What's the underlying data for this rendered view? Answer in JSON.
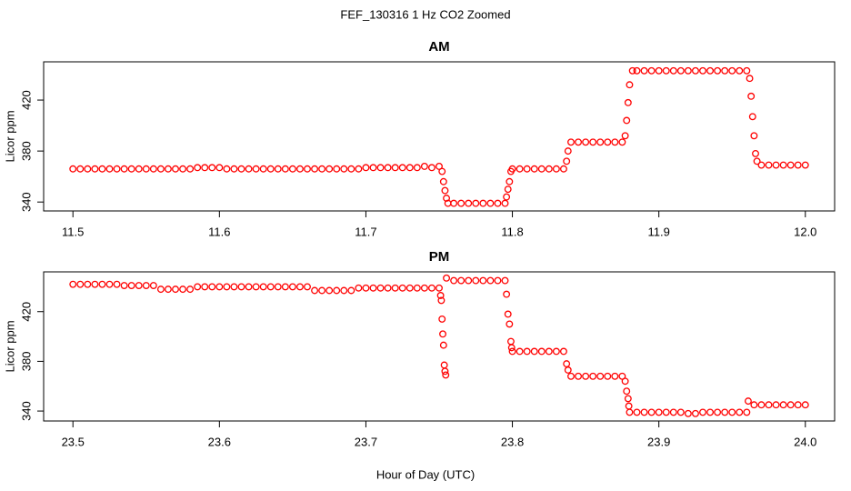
{
  "title": "FEF_130316  1 Hz CO2 Zoomed",
  "x_label": "Hour of Day (UTC)",
  "chart_data": [
    {
      "type": "scatter",
      "title": "AM",
      "y_label": "Licor ppm",
      "color": "#ff0000",
      "xlim": [
        11.48,
        12.02
      ],
      "xticks": [
        11.5,
        11.6,
        11.7,
        11.8,
        11.9,
        {
          "value": 12,
          "label": "12.0"
        }
      ],
      "ylim": [
        333,
        450
      ],
      "yticks": [
        340,
        380,
        420
      ],
      "x": [
        11.5,
        11.505,
        11.51,
        11.515,
        11.52,
        11.525,
        11.53,
        11.535,
        11.54,
        11.545,
        11.55,
        11.555,
        11.56,
        11.565,
        11.57,
        11.575,
        11.58,
        11.585,
        11.59,
        11.595,
        11.6,
        11.605,
        11.61,
        11.615,
        11.62,
        11.625,
        11.63,
        11.635,
        11.64,
        11.645,
        11.65,
        11.655,
        11.66,
        11.665,
        11.67,
        11.675,
        11.68,
        11.685,
        11.69,
        11.695,
        11.7,
        11.705,
        11.71,
        11.715,
        11.72,
        11.725,
        11.73,
        11.735,
        11.74,
        11.745,
        11.75,
        11.752,
        11.753,
        11.754,
        11.755,
        11.756,
        11.76,
        11.765,
        11.77,
        11.775,
        11.78,
        11.785,
        11.79,
        11.795,
        11.796,
        11.797,
        11.798,
        11.799,
        11.8,
        11.805,
        11.81,
        11.815,
        11.82,
        11.825,
        11.83,
        11.835,
        11.837,
        11.838,
        11.84,
        11.845,
        11.85,
        11.855,
        11.86,
        11.865,
        11.87,
        11.875,
        11.877,
        11.878,
        11.879,
        11.88,
        11.882,
        11.885,
        11.89,
        11.895,
        11.9,
        11.905,
        11.91,
        11.915,
        11.92,
        11.925,
        11.93,
        11.935,
        11.94,
        11.945,
        11.95,
        11.955,
        11.96,
        11.962,
        11.963,
        11.964,
        11.965,
        11.966,
        11.967,
        11.97,
        11.975,
        11.98,
        11.985,
        11.99,
        11.995,
        12.0
      ],
      "values": [
        366,
        366,
        366,
        366,
        366,
        366,
        366,
        366,
        366,
        366,
        366,
        366,
        366,
        366,
        366,
        366,
        366,
        367,
        367,
        367,
        367,
        366,
        366,
        366,
        366,
        366,
        366,
        366,
        366,
        366,
        366,
        366,
        366,
        366,
        366,
        366,
        366,
        366,
        366,
        366,
        367,
        367,
        367,
        367,
        367,
        367,
        367,
        367,
        368,
        367,
        368,
        364,
        356,
        349,
        343,
        339,
        339,
        339,
        339,
        339,
        339,
        339,
        339,
        339,
        344,
        350,
        356,
        364,
        366,
        366,
        366,
        366,
        366,
        366,
        366,
        366,
        372,
        380,
        387,
        387,
        387,
        387,
        387,
        387,
        387,
        387,
        392,
        404,
        418,
        432,
        443,
        443,
        443,
        443,
        443,
        443,
        443,
        443,
        443,
        443,
        443,
        443,
        443,
        443,
        443,
        443,
        443,
        437,
        423,
        407,
        392,
        378,
        372,
        369,
        369,
        369,
        369,
        369,
        369,
        369
      ]
    },
    {
      "type": "scatter",
      "title": "PM",
      "y_label": "Licor ppm",
      "color": "#ff0000",
      "xlim": [
        23.48,
        24.02
      ],
      "xticks": [
        23.5,
        23.6,
        23.7,
        23.8,
        23.9,
        {
          "value": 24,
          "label": "24.0"
        }
      ],
      "ylim": [
        332,
        452
      ],
      "yticks": [
        340,
        380,
        420
      ],
      "x": [
        23.5,
        23.505,
        23.51,
        23.515,
        23.52,
        23.525,
        23.53,
        23.535,
        23.54,
        23.545,
        23.55,
        23.555,
        23.56,
        23.565,
        23.57,
        23.575,
        23.58,
        23.585,
        23.59,
        23.595,
        23.6,
        23.605,
        23.61,
        23.615,
        23.62,
        23.625,
        23.63,
        23.635,
        23.64,
        23.645,
        23.65,
        23.655,
        23.66,
        23.665,
        23.67,
        23.675,
        23.68,
        23.685,
        23.69,
        23.695,
        23.7,
        23.705,
        23.71,
        23.715,
        23.72,
        23.725,
        23.73,
        23.735,
        23.74,
        23.745,
        23.75,
        23.751,
        23.7515,
        23.752,
        23.7525,
        23.753,
        23.7535,
        23.754,
        23.7545,
        23.755,
        23.76,
        23.765,
        23.77,
        23.775,
        23.78,
        23.785,
        23.79,
        23.795,
        23.796,
        23.797,
        23.798,
        23.799,
        23.7995,
        23.8,
        23.805,
        23.81,
        23.815,
        23.82,
        23.825,
        23.83,
        23.835,
        23.837,
        23.838,
        23.84,
        23.845,
        23.85,
        23.855,
        23.86,
        23.865,
        23.87,
        23.875,
        23.877,
        23.878,
        23.879,
        23.8795,
        23.88,
        23.885,
        23.89,
        23.895,
        23.9,
        23.905,
        23.91,
        23.915,
        23.92,
        23.925,
        23.93,
        23.935,
        23.94,
        23.945,
        23.95,
        23.955,
        23.96,
        23.961,
        23.965,
        23.97,
        23.975,
        23.98,
        23.985,
        23.99,
        23.995,
        24.0
      ],
      "values": [
        442,
        442,
        442,
        442,
        442,
        442,
        442,
        441,
        441,
        441,
        441,
        441,
        438,
        438,
        438,
        438,
        438,
        440,
        440,
        440,
        440,
        440,
        440,
        440,
        440,
        440,
        440,
        440,
        440,
        440,
        440,
        440,
        440,
        437,
        437,
        437,
        437,
        437,
        437,
        439,
        439,
        439,
        439,
        439,
        439,
        439,
        439,
        439,
        439,
        439,
        439,
        433,
        429,
        414,
        402,
        393,
        377,
        372,
        369,
        447,
        445,
        445,
        445,
        445,
        445,
        445,
        445,
        445,
        434,
        418,
        410,
        396,
        391,
        388,
        388,
        388,
        388,
        388,
        388,
        388,
        388,
        378,
        373,
        368,
        368,
        368,
        368,
        368,
        368,
        368,
        368,
        364,
        356,
        350,
        344,
        339,
        339,
        339,
        339,
        339,
        339,
        339,
        339,
        338,
        338,
        339,
        339,
        339,
        339,
        339,
        339,
        339,
        348,
        345,
        345,
        345,
        345,
        345,
        345,
        345,
        345
      ]
    }
  ]
}
